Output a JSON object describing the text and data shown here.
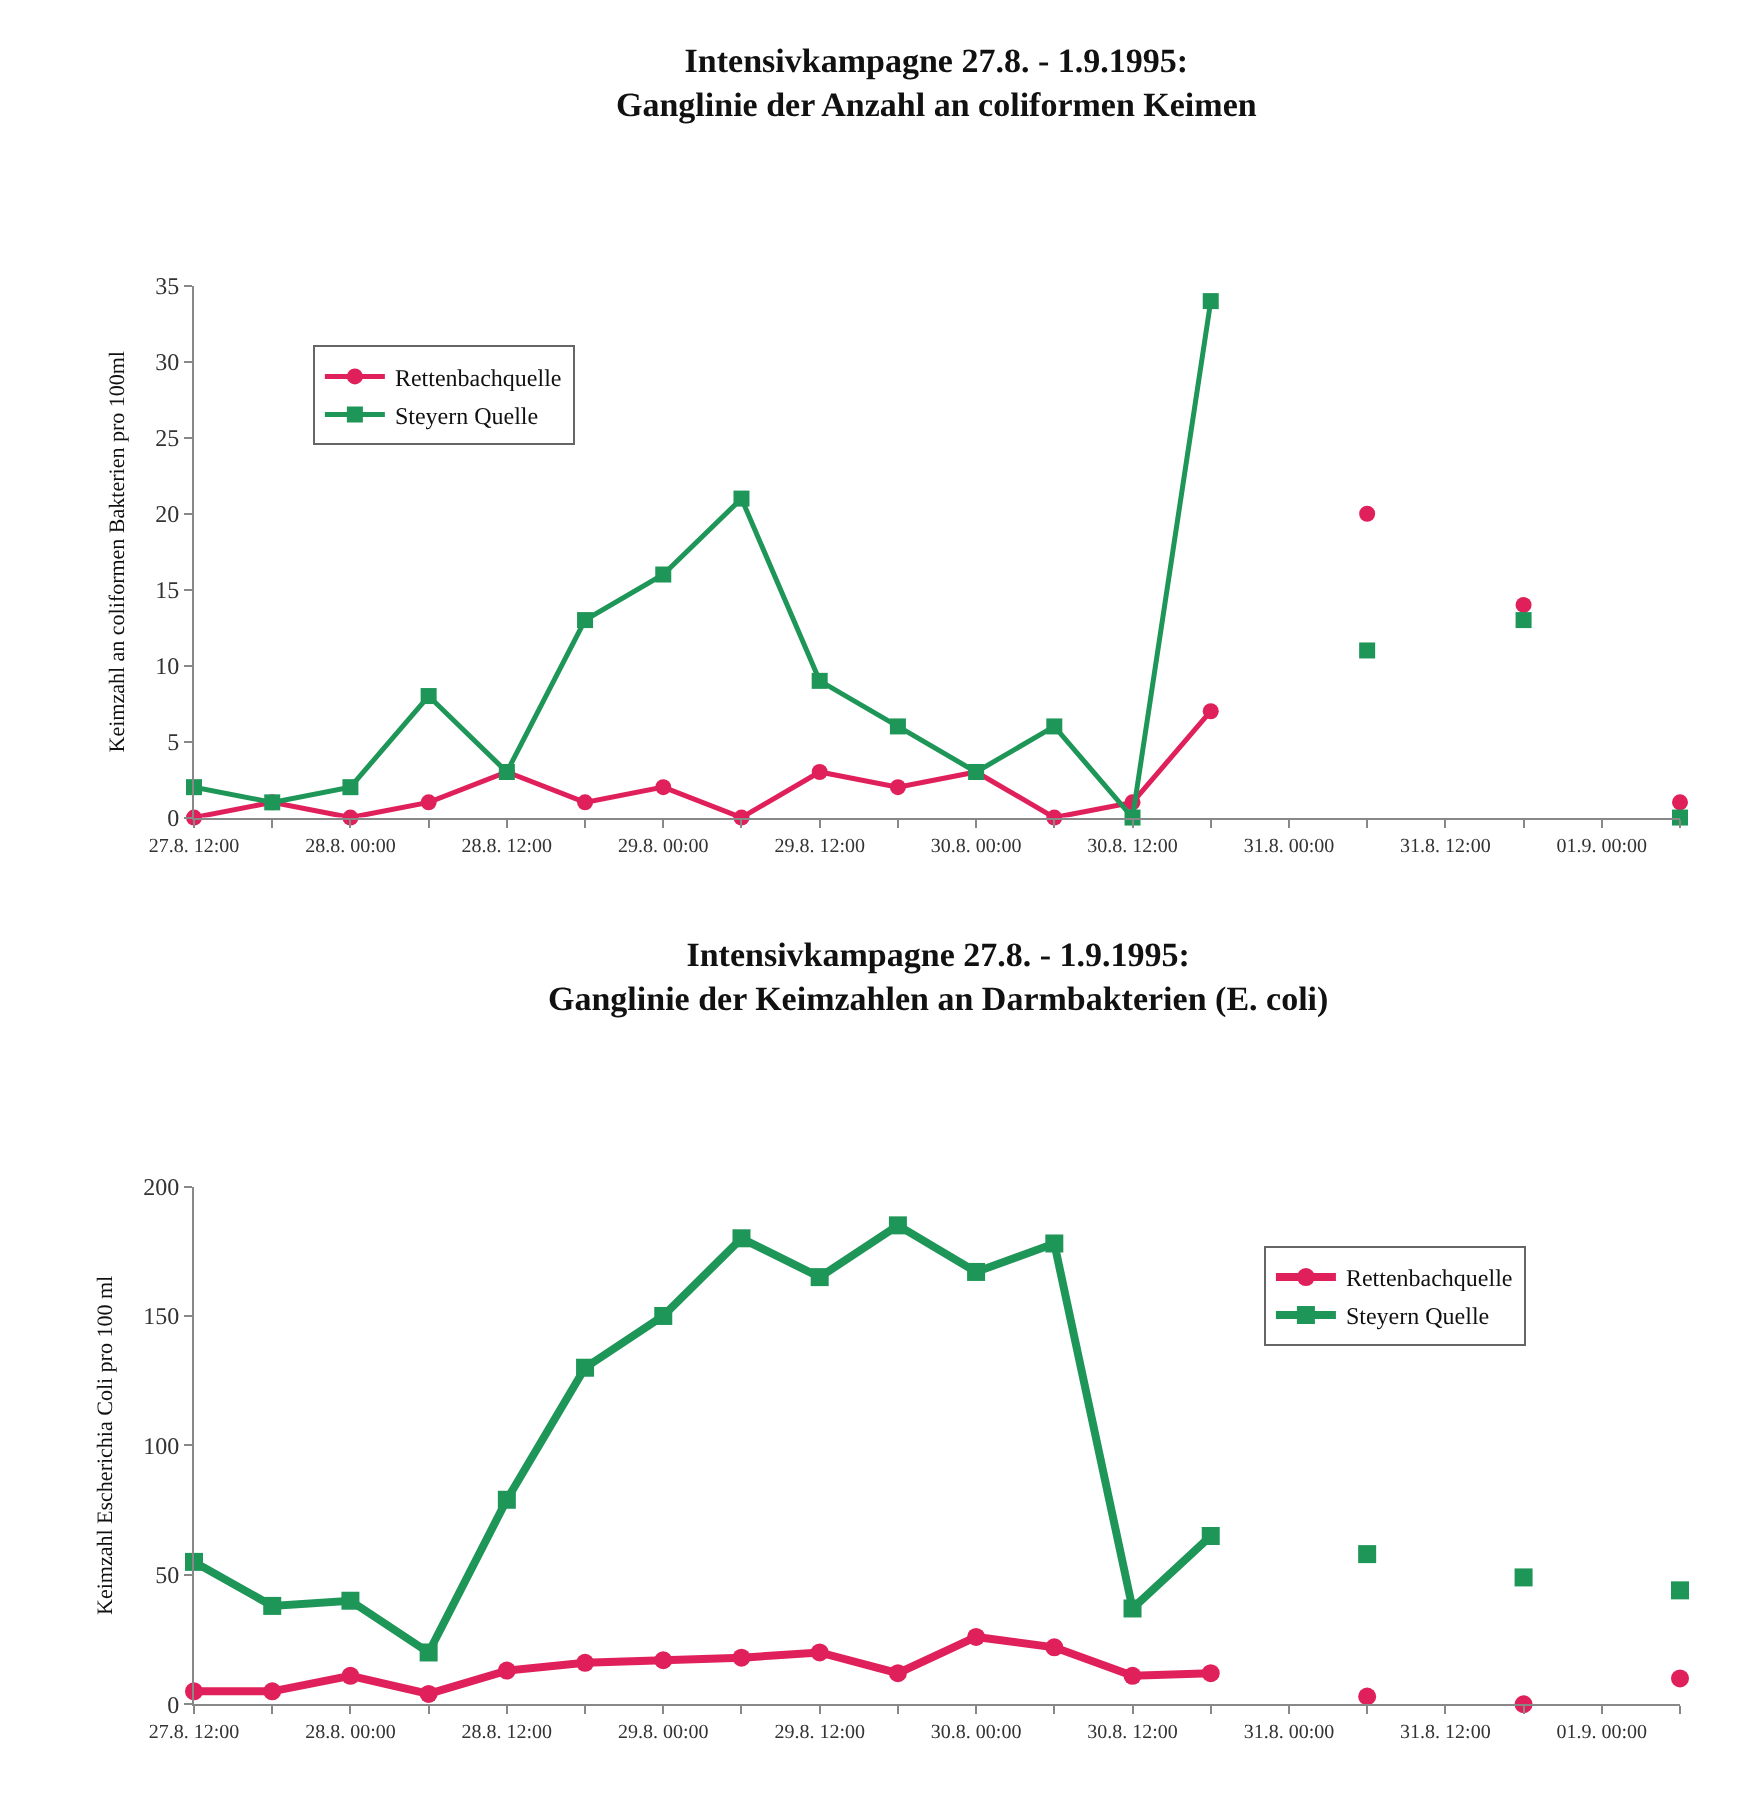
{
  "chart_data": [
    {
      "type": "line",
      "title": "Intensivkampagne 27.8. - 1.9.1995:\nGanglinie der Anzahl an coliformen Keimen",
      "ylabel": "Keimzahl an coliformen Bakterien pro 100ml",
      "x": [
        "1995-08-27T12:00",
        "1995-08-27T18:00",
        "1995-08-28T00:00",
        "1995-08-28T06:00",
        "1995-08-28T12:00",
        "1995-08-28T18:00",
        "1995-08-29T00:00",
        "1995-08-29T06:00",
        "1995-08-29T12:00",
        "1995-08-29T18:00",
        "1995-08-30T00:00",
        "1995-08-30T06:00",
        "1995-08-30T12:00",
        "1995-08-30T18:00",
        "1995-08-31T00:00",
        "1995-08-31T06:00",
        "1995-08-31T12:00",
        "1995-08-31T18:00",
        "1995-09-01T00:00",
        "1995-09-01T06:00"
      ],
      "series": [
        {
          "name": "Rettenbachquelle",
          "color": "#e0205a",
          "marker": "circle",
          "values": [
            0,
            1,
            0,
            1,
            3,
            1,
            2,
            0,
            3,
            2,
            3,
            0,
            1,
            7,
            null,
            20,
            null,
            14,
            null,
            1
          ]
        },
        {
          "name": "Steyern Quelle",
          "color": "#1e9658",
          "marker": "square",
          "values": [
            2,
            1,
            2,
            8,
            3,
            13,
            16,
            21,
            9,
            6,
            3,
            6,
            0,
            34,
            null,
            11,
            null,
            13,
            null,
            0
          ]
        }
      ],
      "xlim": [
        "1995-08-27T12:00",
        "1995-09-01T06:00"
      ],
      "xticks": [
        {
          "value": "1995-08-27T12:00",
          "label": "27.8. 12:00"
        },
        {
          "value": "1995-08-27T18:00",
          "label": null
        },
        {
          "value": "1995-08-28T00:00",
          "label": "28.8. 00:00"
        },
        {
          "value": "1995-08-28T06:00",
          "label": null
        },
        {
          "value": "1995-08-28T12:00",
          "label": "28.8. 12:00"
        },
        {
          "value": "1995-08-28T18:00",
          "label": null
        },
        {
          "value": "1995-08-29T00:00",
          "label": "29.8. 00:00"
        },
        {
          "value": "1995-08-29T06:00",
          "label": null
        },
        {
          "value": "1995-08-29T12:00",
          "label": "29.8. 12:00"
        },
        {
          "value": "1995-08-29T18:00",
          "label": null
        },
        {
          "value": "1995-08-30T00:00",
          "label": "30.8. 00:00"
        },
        {
          "value": "1995-08-30T06:00",
          "label": null
        },
        {
          "value": "1995-08-30T12:00",
          "label": "30.8. 12:00"
        },
        {
          "value": "1995-08-30T18:00",
          "label": null
        },
        {
          "value": "1995-08-31T00:00",
          "label": "31.8. 00:00"
        },
        {
          "value": "1995-08-31T06:00",
          "label": null
        },
        {
          "value": "1995-08-31T12:00",
          "label": "31.8. 12:00"
        },
        {
          "value": "1995-08-31T18:00",
          "label": null
        },
        {
          "value": "1995-09-01T00:00",
          "label": "01.9. 00:00"
        },
        {
          "value": "1995-09-01T06:00",
          "label": null
        }
      ],
      "ylim": [
        0,
        35
      ],
      "yticks": [
        0,
        5,
        10,
        15,
        20,
        25,
        30,
        35
      ],
      "legend": "top left",
      "line_style": "solid"
    },
    {
      "type": "line",
      "title": "Intensivkampagne 27.8. - 1.9.1995:\nGanglinie der Keimzahlen an Darmbakterien (E. coli)",
      "ylabel": "Keimzahl Escherichia Coli pro 100 ml",
      "x": [
        "1995-08-27T12:00",
        "1995-08-27T18:00",
        "1995-08-28T00:00",
        "1995-08-28T06:00",
        "1995-08-28T12:00",
        "1995-08-28T18:00",
        "1995-08-29T00:00",
        "1995-08-29T06:00",
        "1995-08-29T12:00",
        "1995-08-29T18:00",
        "1995-08-30T00:00",
        "1995-08-30T06:00",
        "1995-08-30T12:00",
        "1995-08-30T18:00",
        "1995-08-31T00:00",
        "1995-08-31T06:00",
        "1995-08-31T12:00",
        "1995-08-31T18:00",
        "1995-09-01T00:00",
        "1995-09-01T06:00"
      ],
      "series": [
        {
          "name": "Rettenbachquelle",
          "color": "#e0205a",
          "marker": "circle",
          "values": [
            5,
            5,
            11,
            4,
            13,
            16,
            17,
            18,
            20,
            12,
            26,
            22,
            11,
            12,
            null,
            3,
            null,
            0,
            null,
            10
          ]
        },
        {
          "name": "Steyern Quelle",
          "color": "#1e9658",
          "marker": "square",
          "values": [
            55,
            38,
            40,
            20,
            79,
            130,
            150,
            180,
            165,
            185,
            167,
            178,
            37,
            65,
            null,
            58,
            null,
            49,
            null,
            44
          ]
        }
      ],
      "xlim": [
        "1995-08-27T12:00",
        "1995-09-01T06:00"
      ],
      "xticks": [
        {
          "value": "1995-08-27T12:00",
          "label": "27.8. 12:00"
        },
        {
          "value": "1995-08-27T18:00",
          "label": null
        },
        {
          "value": "1995-08-28T00:00",
          "label": "28.8. 00:00"
        },
        {
          "value": "1995-08-28T06:00",
          "label": null
        },
        {
          "value": "1995-08-28T12:00",
          "label": "28.8. 12:00"
        },
        {
          "value": "1995-08-28T18:00",
          "label": null
        },
        {
          "value": "1995-08-29T00:00",
          "label": "29.8. 00:00"
        },
        {
          "value": "1995-08-29T06:00",
          "label": null
        },
        {
          "value": "1995-08-29T12:00",
          "label": "29.8. 12:00"
        },
        {
          "value": "1995-08-29T18:00",
          "label": null
        },
        {
          "value": "1995-08-30T00:00",
          "label": "30.8. 00:00"
        },
        {
          "value": "1995-08-30T06:00",
          "label": null
        },
        {
          "value": "1995-08-30T12:00",
          "label": "30.8. 12:00"
        },
        {
          "value": "1995-08-30T18:00",
          "label": null
        },
        {
          "value": "1995-08-31T00:00",
          "label": "31.8. 00:00"
        },
        {
          "value": "1995-08-31T06:00",
          "label": null
        },
        {
          "value": "1995-08-31T12:00",
          "label": "31.8. 12:00"
        },
        {
          "value": "1995-08-31T18:00",
          "label": null
        },
        {
          "value": "1995-09-01T00:00",
          "label": "01.9. 00:00"
        },
        {
          "value": "1995-09-01T06:00",
          "label": null
        }
      ],
      "ylim": [
        0,
        200
      ],
      "yticks": [
        0,
        50,
        100,
        150,
        200
      ],
      "legend": "top right",
      "line_style": "solid"
    }
  ]
}
